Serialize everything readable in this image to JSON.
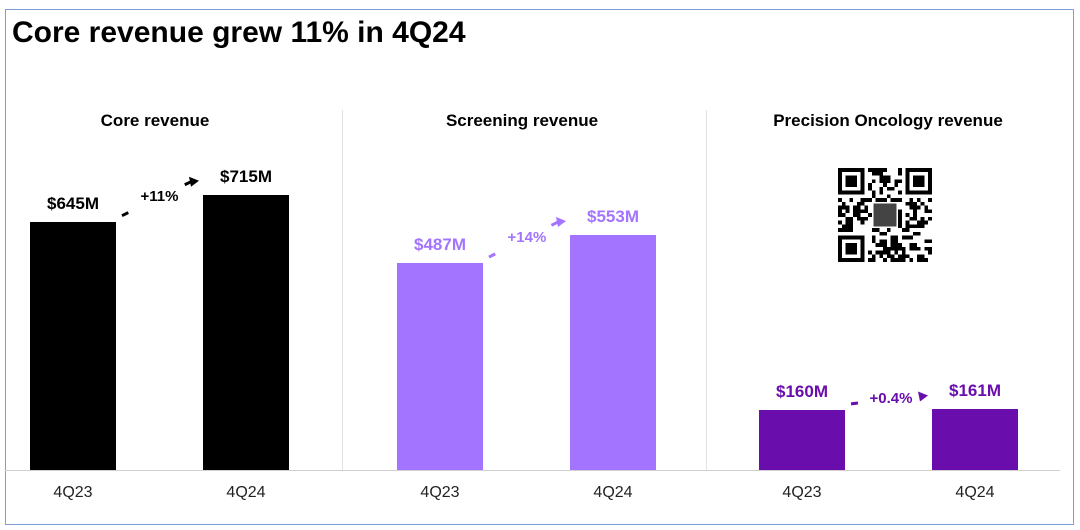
{
  "title": "Core revenue grew 11% in 4Q24",
  "colors": {
    "core": "#000000",
    "screening": "#a374ff",
    "oncology": "#6a0dad"
  },
  "chart_data": [
    {
      "type": "bar",
      "title": "Core revenue",
      "categories": [
        "4Q23",
        "4Q24"
      ],
      "values": [
        645,
        715
      ],
      "value_labels": [
        "$645M",
        "$715M"
      ],
      "change": "+11%",
      "unit": "$M"
    },
    {
      "type": "bar",
      "title": "Screening revenue",
      "categories": [
        "4Q23",
        "4Q24"
      ],
      "values": [
        487,
        553
      ],
      "value_labels": [
        "$487M",
        "$553M"
      ],
      "change": "+14%",
      "unit": "$M"
    },
    {
      "type": "bar",
      "title": "Precision Oncology revenue",
      "categories": [
        "4Q23",
        "4Q24"
      ],
      "values": [
        160,
        161
      ],
      "value_labels": [
        "$160M",
        "$161M"
      ],
      "change": "+0.4%",
      "unit": "$M"
    }
  ]
}
